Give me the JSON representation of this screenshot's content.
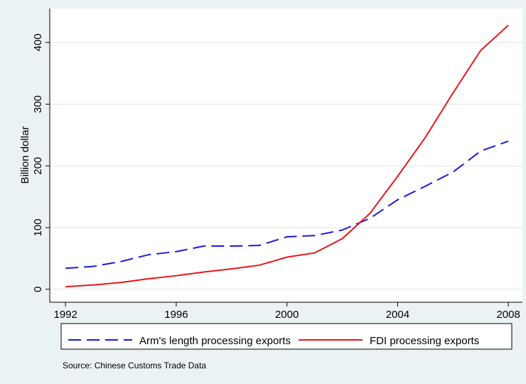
{
  "chart_data": {
    "type": "line",
    "y_label": "Billion dollar",
    "note": "Source: Chinese Customs Trade Data",
    "x": [
      1992,
      1993,
      1994,
      1995,
      1996,
      1997,
      1998,
      1999,
      2000,
      2001,
      2002,
      2003,
      2004,
      2005,
      2006,
      2007,
      2008
    ],
    "series": [
      {
        "name": "Arm's length processing exports",
        "color": "#1a1adb",
        "dashed": true,
        "values": [
          34,
          37,
          45,
          56,
          61,
          70,
          70,
          71,
          85,
          87,
          96,
          115,
          145,
          167,
          190,
          224,
          240
        ]
      },
      {
        "name": "FDI processing exports",
        "color": "#e8161b",
        "dashed": false,
        "values": [
          4,
          7,
          11,
          17,
          22,
          28,
          33,
          39,
          52,
          59,
          82,
          123,
          183,
          246,
          318,
          387,
          428
        ]
      }
    ],
    "xlim": [
      1991.43,
      2008.51
    ],
    "xticks": [
      1992,
      1996,
      2000,
      2004,
      2008
    ],
    "ylim": [
      -21,
      455
    ],
    "yticks": [
      0,
      100,
      200,
      300,
      400
    ],
    "grid": true,
    "legend": "bottom"
  }
}
